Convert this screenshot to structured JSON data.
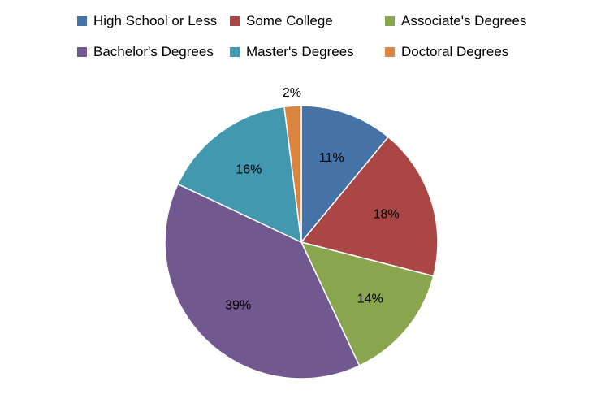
{
  "chart_data": {
    "type": "pie",
    "title": "",
    "legend_position": "top",
    "start_angle_deg": 0,
    "direction": "clockwise",
    "categories": [
      "High School or Less",
      "Some College",
      "Associate's Degrees",
      "Bachelor's Degrees",
      "Master's Degrees",
      "Doctoral Degrees"
    ],
    "values": [
      11,
      18,
      14,
      39,
      16,
      2
    ],
    "labels": [
      "11%",
      "18%",
      "14%",
      "39%",
      "16%",
      "2%"
    ],
    "colors": [
      "#4572A7",
      "#AA4643",
      "#89A54E",
      "#71588F",
      "#4198AF",
      "#DB843D"
    ]
  }
}
